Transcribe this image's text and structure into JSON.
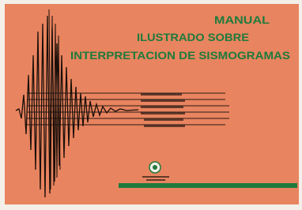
{
  "cover": {
    "title_lines": [
      "MANUAL",
      "ILUSTRADO SOBRE",
      "INTERPRETACION DE SISMOGRAMAS"
    ]
  }
}
